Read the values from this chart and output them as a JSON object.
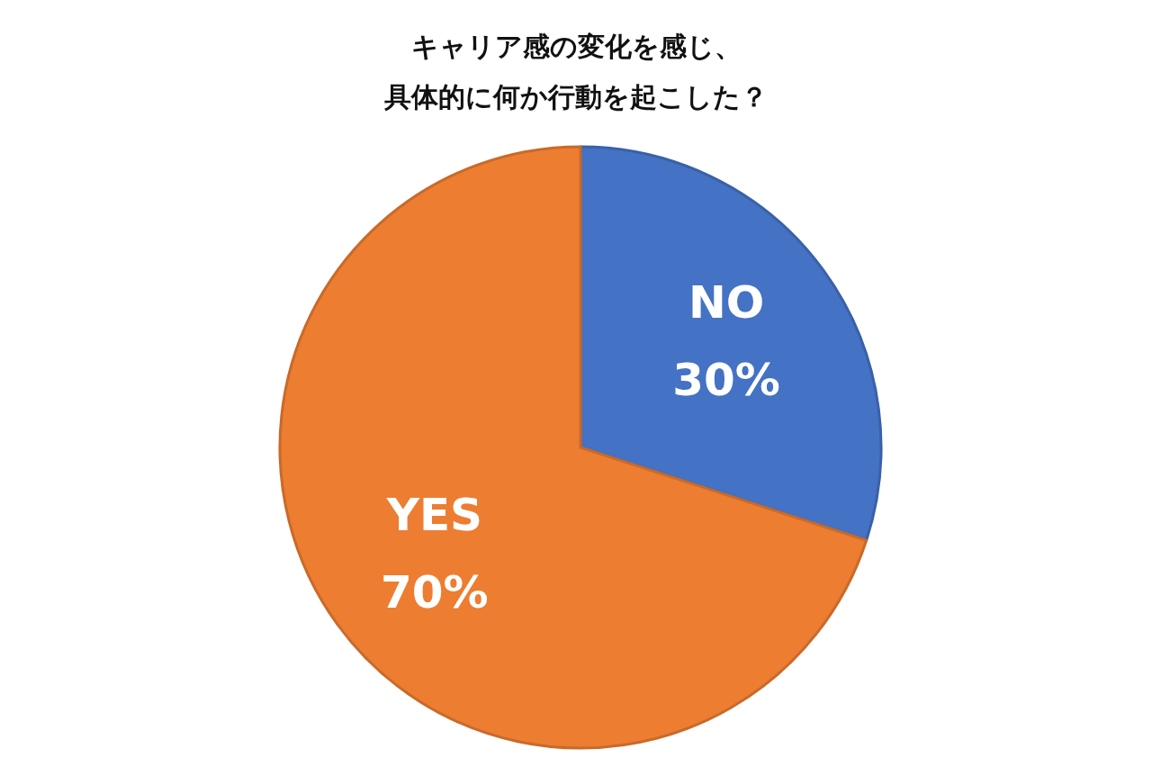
{
  "chart_data": {
    "type": "pie",
    "title": "キャリア感の変化を感じ、具体的に何か行動を起こした？",
    "categories": [
      "NO",
      "YES"
    ],
    "values": [
      30,
      70
    ],
    "colors": [
      "#4472c4",
      "#ed7d31"
    ],
    "value_labels": [
      "30%",
      "70%"
    ]
  }
}
